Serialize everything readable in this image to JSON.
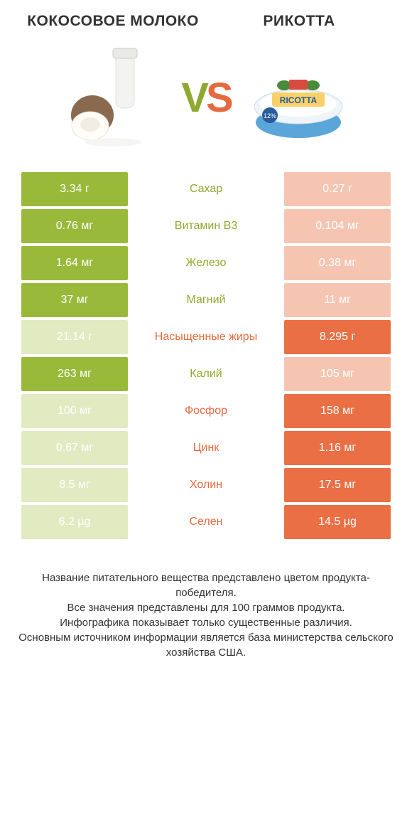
{
  "colors": {
    "left_win": "#99b93b",
    "left_lose": "#e1eac1",
    "right_win": "#ea6f44",
    "right_lose": "#f5c5b2",
    "left_text": "#8fa92f",
    "right_text": "#e66a3f",
    "background": "#ffffff"
  },
  "header": {
    "left_title": "КОКОСОВОЕ МОЛОКО",
    "right_title": "РИКОТТА",
    "vs_v": "V",
    "vs_s": "S"
  },
  "rows": [
    {
      "label": "Сахар",
      "left": "3.34 г",
      "right": "0.27 г",
      "winner": "left"
    },
    {
      "label": "Витамин B3",
      "left": "0.76 мг",
      "right": "0.104 мг",
      "winner": "left"
    },
    {
      "label": "Железо",
      "left": "1.64 мг",
      "right": "0.38 мг",
      "winner": "left"
    },
    {
      "label": "Магний",
      "left": "37 мг",
      "right": "11 мг",
      "winner": "left"
    },
    {
      "label": "Насыщенные жиры",
      "left": "21.14 г",
      "right": "8.295 г",
      "winner": "right"
    },
    {
      "label": "Калий",
      "left": "263 мг",
      "right": "105 мг",
      "winner": "left"
    },
    {
      "label": "Фосфор",
      "left": "100 мг",
      "right": "158 мг",
      "winner": "right"
    },
    {
      "label": "Цинк",
      "left": "0.67 мг",
      "right": "1.16 мг",
      "winner": "right"
    },
    {
      "label": "Холин",
      "left": "8.5 мг",
      "right": "17.5 мг",
      "winner": "right"
    },
    {
      "label": "Селен",
      "left": "6.2 µg",
      "right": "14.5 µg",
      "winner": "right"
    }
  ],
  "footer": {
    "line1": "Название питательного вещества представлено цветом продукта-победителя.",
    "line2": "Все значения представлены для 100 граммов продукта.",
    "line3": "Инфографика показывает только существенные различия.",
    "line4": "Основным источником информации является база министерства сельского хозяйства США."
  }
}
